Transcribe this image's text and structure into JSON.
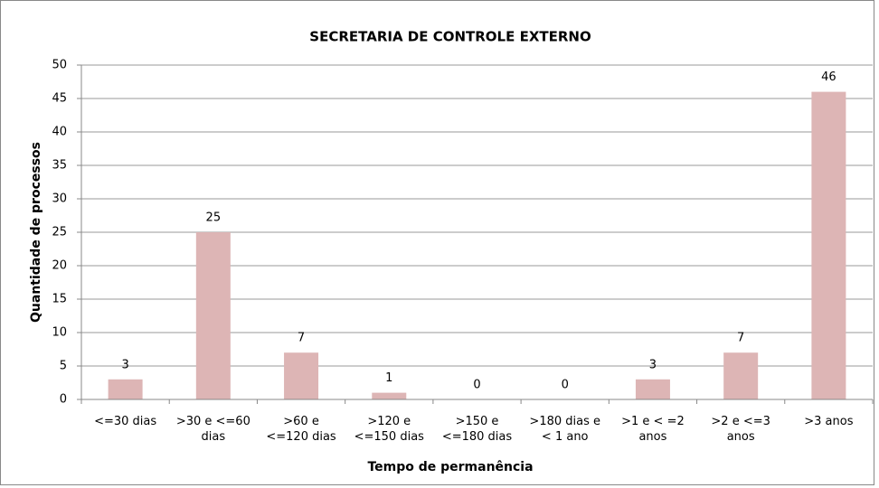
{
  "chart_data": {
    "type": "bar",
    "title": "SECRETARIA DE CONTROLE EXTERNO",
    "x_label": "Tempo de permanência",
    "y_label": "Quantidade de processos",
    "categories": [
      "<=30 dias",
      ">30 e <=60 dias",
      ">60 e <=120 dias",
      ">120 e <=150 dias",
      ">150 e <=180 dias",
      ">180 dias e < 1 ano",
      ">1 e < =2 anos",
      ">2 e <=3 anos",
      ">3 anos"
    ],
    "values": [
      3,
      25,
      7,
      1,
      0,
      0,
      3,
      7,
      46
    ],
    "color": "#ddb5b5",
    "ylim": [
      0,
      50
    ],
    "yticks": [
      0,
      5,
      10,
      15,
      20,
      25,
      30,
      35,
      40,
      45,
      50
    ],
    "grid": true
  }
}
